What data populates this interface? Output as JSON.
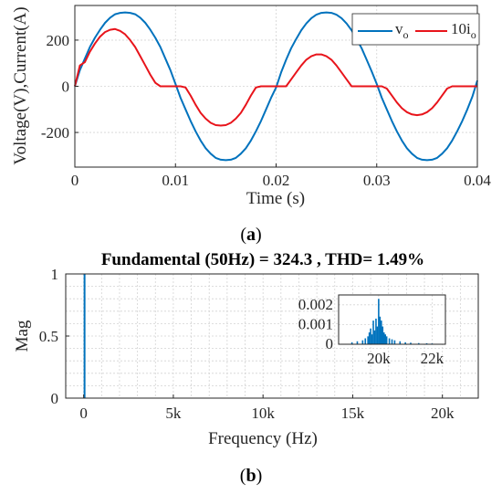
{
  "chart_data": [
    {
      "type": "line",
      "caption": "(a)",
      "caption_letter": "a",
      "title": "",
      "xlabel": "Time (s)",
      "ylabel": "Voltage(V),Current(A)",
      "xlim": [
        0,
        0.04
      ],
      "ylim": [
        -350,
        350
      ],
      "xticks": [
        0,
        0.01,
        0.02,
        0.03,
        0.04
      ],
      "xtick_labels": [
        "0",
        "0.01",
        "0.02",
        "0.03",
        "0.04"
      ],
      "yticks": [
        -200,
        0,
        200
      ],
      "ytick_labels": [
        "-200",
        "0",
        "200"
      ],
      "grid": true,
      "legend_position": "top-right",
      "series": [
        {
          "name": "v",
          "name_subscript": "o",
          "color": "#0072BD",
          "x": [
            0,
            0.0005,
            0.001,
            0.0015,
            0.002,
            0.0025,
            0.003,
            0.0035,
            0.004,
            0.0045,
            0.005,
            0.0055,
            0.006,
            0.0065,
            0.007,
            0.0075,
            0.008,
            0.0085,
            0.009,
            0.0095,
            0.01,
            0.0105,
            0.011,
            0.0115,
            0.012,
            0.0125,
            0.013,
            0.0135,
            0.014,
            0.0145,
            0.015,
            0.0155,
            0.016,
            0.0165,
            0.017,
            0.0175,
            0.018,
            0.0185,
            0.019,
            0.0195,
            0.02,
            0.0205,
            0.021,
            0.0215,
            0.022,
            0.0225,
            0.023,
            0.0235,
            0.024,
            0.0245,
            0.025,
            0.0255,
            0.026,
            0.0265,
            0.027,
            0.0275,
            0.028,
            0.0285,
            0.029,
            0.0295,
            0.03,
            0.0305,
            0.031,
            0.0315,
            0.032,
            0.0325,
            0.033,
            0.0335,
            0.034,
            0.0345,
            0.035,
            0.0355,
            0.036,
            0.0365,
            0.037,
            0.0375,
            0.038,
            0.0385,
            0.039,
            0.0395,
            0.04
          ],
          "y": [
            0,
            70,
            120,
            170,
            210,
            245,
            275,
            297,
            312,
            318,
            320,
            318,
            312,
            297,
            275,
            245,
            210,
            170,
            120,
            70,
            10,
            -50,
            -100,
            -150,
            -195,
            -235,
            -268,
            -292,
            -310,
            -318,
            -320,
            -318,
            -310,
            -292,
            -268,
            -235,
            -195,
            -150,
            -100,
            -50,
            -5,
            60,
            115,
            165,
            205,
            243,
            272,
            295,
            310,
            318,
            320,
            318,
            310,
            295,
            272,
            243,
            205,
            165,
            115,
            65,
            10,
            -50,
            -100,
            -150,
            -195,
            -235,
            -268,
            -292,
            -310,
            -318,
            -320,
            -318,
            -310,
            -292,
            -268,
            -235,
            -195,
            -150,
            -100,
            -45,
            25
          ]
        },
        {
          "name": "10i",
          "name_subscript": "o",
          "color": "#E8141B",
          "x": [
            0,
            0.0005,
            0.001,
            0.0015,
            0.002,
            0.0025,
            0.003,
            0.0035,
            0.004,
            0.0045,
            0.005,
            0.0055,
            0.006,
            0.0065,
            0.007,
            0.0075,
            0.008,
            0.0085,
            0.009,
            0.0095,
            0.01,
            0.0105,
            0.011,
            0.0115,
            0.012,
            0.0125,
            0.013,
            0.0135,
            0.014,
            0.0145,
            0.015,
            0.0155,
            0.016,
            0.0165,
            0.017,
            0.0175,
            0.018,
            0.0185,
            0.019,
            0.0195,
            0.02,
            0.0205,
            0.021,
            0.0215,
            0.022,
            0.0225,
            0.023,
            0.0235,
            0.024,
            0.0245,
            0.025,
            0.0255,
            0.026,
            0.0265,
            0.027,
            0.0275,
            0.028,
            0.0285,
            0.029,
            0.0295,
            0.03,
            0.0305,
            0.031,
            0.0315,
            0.032,
            0.0325,
            0.033,
            0.0335,
            0.034,
            0.0345,
            0.035,
            0.0355,
            0.036,
            0.0365,
            0.037,
            0.0375,
            0.038,
            0.0385,
            0.039,
            0.0395,
            0.04
          ],
          "y": [
            0,
            90,
            105,
            150,
            185,
            215,
            235,
            245,
            248,
            240,
            225,
            200,
            170,
            130,
            90,
            50,
            15,
            0,
            0,
            0,
            0,
            0,
            -5,
            -40,
            -80,
            -115,
            -140,
            -158,
            -168,
            -170,
            -168,
            -158,
            -140,
            -115,
            -80,
            -40,
            -5,
            0,
            0,
            0,
            0,
            0,
            0,
            30,
            60,
            90,
            115,
            130,
            138,
            138,
            130,
            115,
            90,
            60,
            30,
            0,
            0,
            0,
            0,
            0,
            0,
            0,
            -10,
            -40,
            -70,
            -95,
            -112,
            -122,
            -125,
            -122,
            -112,
            -95,
            -70,
            -40,
            -10,
            0,
            0,
            0,
            0,
            0,
            0
          ]
        }
      ]
    },
    {
      "type": "bar",
      "caption": "(b)",
      "caption_letter": "b",
      "title": "Fundamental (50Hz) = 324.3 , THD= 1.49%",
      "xlabel": "Frequency (Hz)",
      "ylabel": "Mag",
      "xlim": [
        -1000,
        22000
      ],
      "ylim": [
        0,
        1
      ],
      "xticks": [
        0,
        5000,
        10000,
        15000,
        20000
      ],
      "xtick_labels": [
        "0",
        "5k",
        "10k",
        "15k",
        "20k"
      ],
      "yticks": [
        0,
        0.5,
        1
      ],
      "ytick_labels": [
        "0",
        "0.5",
        "1"
      ],
      "grid": true,
      "color": "#0072BD",
      "x": [
        0,
        50,
        150,
        250,
        1500
      ],
      "values": [
        0,
        1.0,
        0.004,
        0.002,
        0.0008
      ],
      "inset": {
        "xlim": [
          18500,
          22500
        ],
        "ylim": [
          0,
          0.0025
        ],
        "xticks": [
          20000,
          22000
        ],
        "xtick_labels": [
          "20k",
          "22k"
        ],
        "yticks": [
          0,
          0.001,
          0.002
        ],
        "ytick_labels": [
          "0",
          "0.001",
          "0.002"
        ],
        "x": [
          19000,
          19200,
          19400,
          19500,
          19600,
          19650,
          19700,
          19750,
          19800,
          19850,
          19900,
          19950,
          20000,
          20050,
          20100,
          20150,
          20200,
          20250,
          20300,
          20400,
          20500,
          20600,
          20800,
          21000,
          21200,
          21500,
          21800,
          22000
        ],
        "values": [
          0.0001,
          0.00015,
          0.0002,
          0.0003,
          0.0004,
          0.0006,
          0.0008,
          0.0005,
          0.0012,
          0.0007,
          0.0013,
          0.0009,
          0.0023,
          0.0014,
          0.0012,
          0.0009,
          0.0006,
          0.0005,
          0.0004,
          0.0003,
          0.00025,
          0.0002,
          0.00015,
          0.0001,
          8e-05,
          6e-05,
          5e-05,
          4e-05
        ]
      }
    }
  ]
}
